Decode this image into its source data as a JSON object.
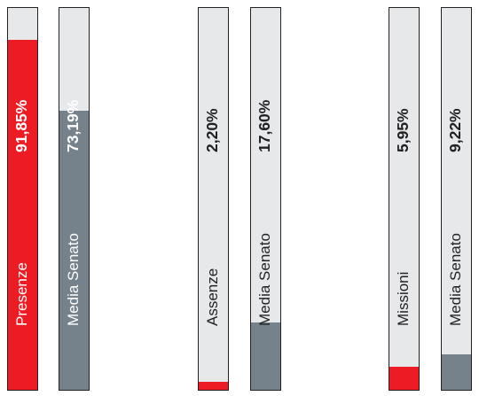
{
  "chart_data": {
    "type": "bar",
    "orientation": "vertical",
    "ylim": [
      0,
      100
    ],
    "groups": [
      {
        "bars": [
          {
            "name": "Presenze",
            "value": 91.85,
            "label": "91,85%",
            "color": "#ed1c24"
          },
          {
            "name": "Media Senato",
            "value": 73.19,
            "label": "73,19%",
            "color": "#75828b"
          }
        ]
      },
      {
        "bars": [
          {
            "name": "Assenze",
            "value": 2.2,
            "label": "2,20%",
            "color": "#ed1c24"
          },
          {
            "name": "Media Senato",
            "value": 17.6,
            "label": "17,60%",
            "color": "#75828b"
          }
        ]
      },
      {
        "bars": [
          {
            "name": "Missioni",
            "value": 5.95,
            "label": "5,95%",
            "color": "#ed1c24"
          },
          {
            "name": "Media Senato",
            "value": 9.22,
            "label": "9,22%",
            "color": "#75828b"
          }
        ]
      }
    ],
    "grid": false,
    "legend": "none"
  }
}
